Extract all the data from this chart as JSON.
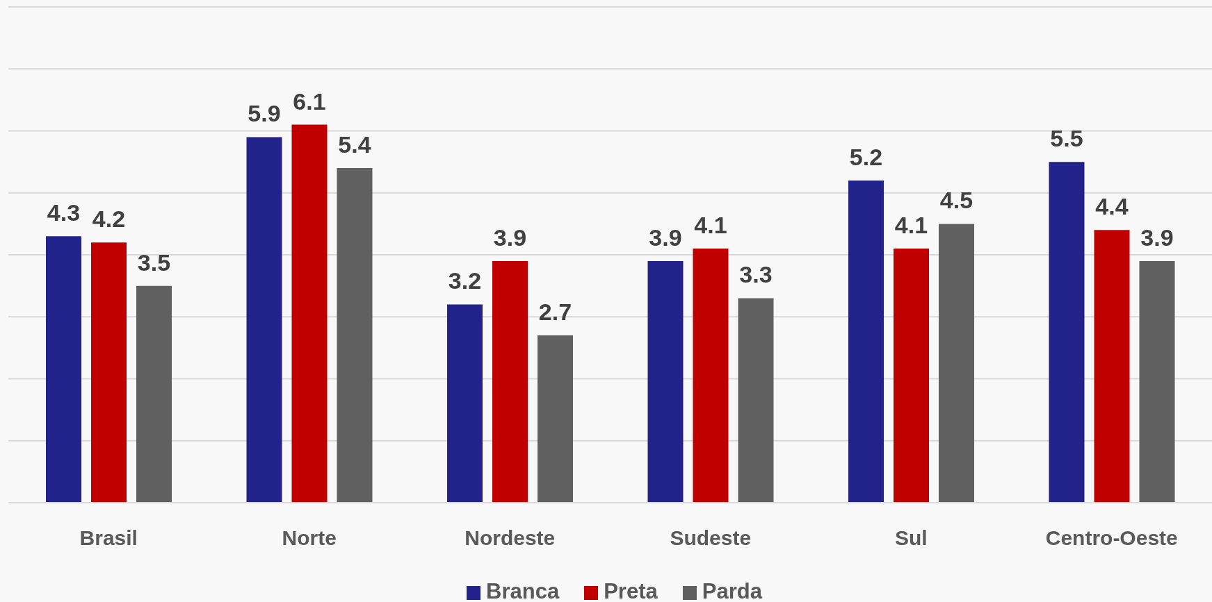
{
  "chart_data": {
    "type": "bar",
    "categories": [
      "Brasil",
      "Norte",
      "Nordeste",
      "Sudeste",
      "Sul",
      "Centro-Oeste"
    ],
    "series": [
      {
        "name": "Branca",
        "color": "#22228b",
        "values": [
          4.3,
          5.9,
          3.2,
          3.9,
          5.2,
          5.5
        ]
      },
      {
        "name": "Preta",
        "color": "#c00000",
        "values": [
          4.2,
          6.1,
          3.9,
          4.1,
          4.1,
          4.4
        ]
      },
      {
        "name": "Parda",
        "color": "#606060",
        "values": [
          3.5,
          5.4,
          2.7,
          3.3,
          4.5,
          3.9
        ]
      }
    ],
    "ylim": [
      0,
      8
    ],
    "yticks": [
      {
        "value": 0,
        "label": null
      },
      {
        "value": 1,
        "label": null
      },
      {
        "value": 2,
        "label": null
      },
      {
        "value": 3,
        "label": null
      },
      {
        "value": 4,
        "label": null
      },
      {
        "value": 5,
        "label": null
      },
      {
        "value": 6,
        "label": null
      },
      {
        "value": 7,
        "label": null
      },
      {
        "value": 8,
        "label": null
      }
    ],
    "grid": "y",
    "legend": "bottom",
    "data_labels": true,
    "tick_labels": "x"
  }
}
